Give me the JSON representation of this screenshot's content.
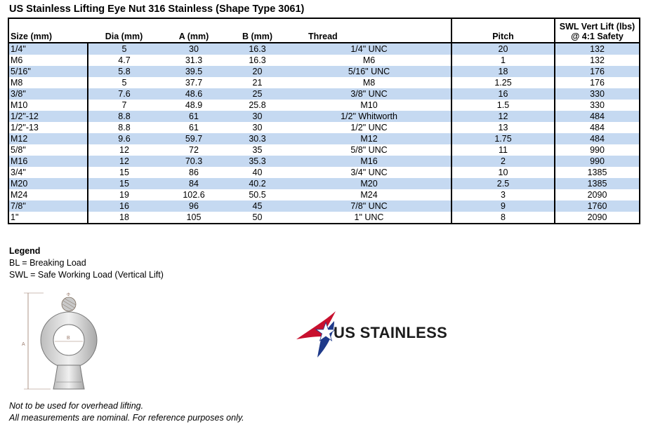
{
  "title": "US Stainless Lifting Eye Nut 316 Stainless (Shape Type 3061)",
  "table": {
    "headers": {
      "size": "Size (mm)",
      "dia": "Dia (mm)",
      "a": "A (mm)",
      "b": "B (mm)",
      "thread": "Thread",
      "pitch": "Pitch",
      "swl_line1": "SWL Vert Lift (lbs)",
      "swl_line2": "@ 4:1 Safety"
    },
    "rows": [
      {
        "size": "1/4\"",
        "dia": "5",
        "a": "30",
        "b": "16.3",
        "thread": "1/4\" UNC",
        "pitch": "20",
        "swl": "132"
      },
      {
        "size": "M6",
        "dia": "4.7",
        "a": "31.3",
        "b": "16.3",
        "thread": "M6",
        "pitch": "1",
        "swl": "132"
      },
      {
        "size": "5/16\"",
        "dia": "5.8",
        "a": "39.5",
        "b": "20",
        "thread": "5/16\" UNC",
        "pitch": "18",
        "swl": "176"
      },
      {
        "size": "M8",
        "dia": "5",
        "a": "37.7",
        "b": "21",
        "thread": "M8",
        "pitch": "1.25",
        "swl": "176"
      },
      {
        "size": "3/8\"",
        "dia": "7.6",
        "a": "48.6",
        "b": "25",
        "thread": "3/8\" UNC",
        "pitch": "16",
        "swl": "330"
      },
      {
        "size": "M10",
        "dia": "7",
        "a": "48.9",
        "b": "25.8",
        "thread": "M10",
        "pitch": "1.5",
        "swl": "330"
      },
      {
        "size": "1/2\"-12",
        "dia": "8.8",
        "a": "61",
        "b": "30",
        "thread": "1/2\" Whitworth",
        "pitch": "12",
        "swl": "484"
      },
      {
        "size": "1/2\"-13",
        "dia": "8.8",
        "a": "61",
        "b": "30",
        "thread": "1/2\" UNC",
        "pitch": "13",
        "swl": "484"
      },
      {
        "size": "M12",
        "dia": "9.6",
        "a": "59.7",
        "b": "30.3",
        "thread": "M12",
        "pitch": "1.75",
        "swl": "484"
      },
      {
        "size": "5/8\"",
        "dia": "12",
        "a": "72",
        "b": "35",
        "thread": "5/8\" UNC",
        "pitch": "11",
        "swl": "990"
      },
      {
        "size": "M16",
        "dia": "12",
        "a": "70.3",
        "b": "35.3",
        "thread": "M16",
        "pitch": "2",
        "swl": "990"
      },
      {
        "size": "3/4\"",
        "dia": "15",
        "a": "86",
        "b": "40",
        "thread": "3/4\" UNC",
        "pitch": "10",
        "swl": "1385"
      },
      {
        "size": "M20",
        "dia": "15",
        "a": "84",
        "b": "40.2",
        "thread": "M20",
        "pitch": "2.5",
        "swl": "1385"
      },
      {
        "size": "M24",
        "dia": "19",
        "a": "102.6",
        "b": "50.5",
        "thread": "M24",
        "pitch": "3",
        "swl": "2090"
      },
      {
        "size": "7/8\"",
        "dia": "16",
        "a": "96",
        "b": "45",
        "thread": "7/8\" UNC",
        "pitch": "9",
        "swl": "1760"
      },
      {
        "size": "1\"",
        "dia": "18",
        "a": "105",
        "b": "50",
        "thread": "1\" UNC",
        "pitch": "8",
        "swl": "2090"
      }
    ]
  },
  "legend": {
    "heading": "Legend",
    "items": [
      "BL = Breaking Load",
      "SWL = Safe Working Load (Vertical Lift)"
    ]
  },
  "diagram": {
    "label_a": "A",
    "label_b": "B",
    "label_dia": "Φ"
  },
  "logo": {
    "text": "US STAINLESS",
    "colors": {
      "red": "#c8102e",
      "blue": "#1f3a8a",
      "text": "#1c1c1c"
    }
  },
  "notes": [
    "Not to be used for overhead lifting.",
    "All measurements are nominal. For reference purposes only."
  ],
  "colors": {
    "row_shade": "#c5d9f1",
    "border": "#000000"
  }
}
